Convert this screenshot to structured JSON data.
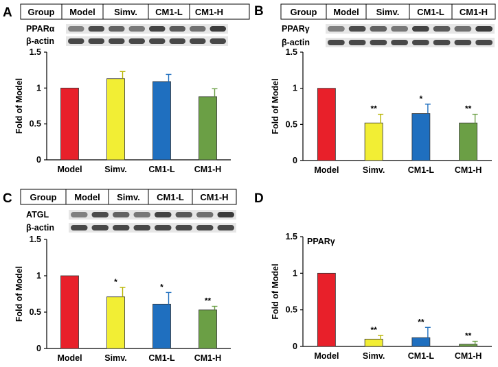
{
  "colors": {
    "model": "#e8202a",
    "simv": "#f2ee34",
    "cm1l": "#1f6fbf",
    "cm1h": "#6b9f45",
    "axis": "#000000",
    "band": "#2b2b2b"
  },
  "chart_data": [
    {
      "type": "bar",
      "panel": "A",
      "blot": {
        "header": [
          "Group",
          "Model",
          "Simv.",
          "CM1-L",
          "CM1-H"
        ],
        "rows": [
          "PPARα",
          "β-actin"
        ]
      },
      "title": "",
      "xlabel": "",
      "ylabel": "Fold of Model",
      "ylim": [
        0,
        1.5
      ],
      "yticks": [
        0,
        0.5,
        1,
        1.5
      ],
      "ytick_labels": [
        "0",
        "0.5",
        "1",
        "1.5"
      ],
      "categories": [
        "Model",
        "Simv.",
        "CM1-L",
        "CM1-H"
      ],
      "values": [
        1.0,
        1.13,
        1.09,
        0.88
      ],
      "errors": [
        0,
        0.1,
        0.1,
        0.11
      ],
      "significance": [
        "",
        "",
        "",
        ""
      ]
    },
    {
      "type": "bar",
      "panel": "B",
      "blot": {
        "header": [
          "Group",
          "Model",
          "Simv.",
          "CM1-L",
          "CM1-H"
        ],
        "rows": [
          "PPARγ",
          "β-actin"
        ]
      },
      "title": "",
      "xlabel": "",
      "ylabel": "Fold of Model",
      "ylim": [
        0,
        1.5
      ],
      "yticks": [
        0,
        0.5,
        1,
        1.5
      ],
      "ytick_labels": [
        "0",
        "0.5",
        "1",
        "1.5"
      ],
      "categories": [
        "Model",
        "Simv.",
        "CM1-L",
        "CM1-H"
      ],
      "values": [
        1.0,
        0.52,
        0.65,
        0.52
      ],
      "errors": [
        0,
        0.12,
        0.13,
        0.12
      ],
      "significance": [
        "",
        "**",
        "*",
        "**"
      ]
    },
    {
      "type": "bar",
      "panel": "C",
      "blot": {
        "header": [
          "Group",
          "Model",
          "Simv.",
          "CM1-L",
          "CM1-H"
        ],
        "rows": [
          "ATGL",
          "β-actin"
        ]
      },
      "title": "",
      "xlabel": "",
      "ylabel": "Fold of Model",
      "ylim": [
        0,
        1.5
      ],
      "yticks": [
        0,
        0.5,
        1,
        1.5
      ],
      "ytick_labels": [
        "0",
        "0.5",
        "1",
        "1.5"
      ],
      "categories": [
        "Model",
        "Simv.",
        "CM1-L",
        "CM1-H"
      ],
      "values": [
        1.0,
        0.71,
        0.61,
        0.53
      ],
      "errors": [
        0,
        0.13,
        0.16,
        0.05
      ],
      "significance": [
        "",
        "*",
        "*",
        "**"
      ]
    },
    {
      "type": "bar",
      "panel": "D",
      "blot": null,
      "title": "PPARγ",
      "xlabel": "",
      "ylabel": "Fold of Model",
      "ylim": [
        0,
        1.5
      ],
      "yticks": [
        0,
        0.5,
        1,
        1.5
      ],
      "ytick_labels": [
        "0",
        "0.5",
        "1",
        "1.5"
      ],
      "categories": [
        "Model",
        "Simv.",
        "CM1-L",
        "CM1-H"
      ],
      "values": [
        1.0,
        0.1,
        0.12,
        0.03
      ],
      "errors": [
        0,
        0.05,
        0.14,
        0.04
      ],
      "significance": [
        "",
        "**",
        "**",
        "**"
      ]
    }
  ]
}
